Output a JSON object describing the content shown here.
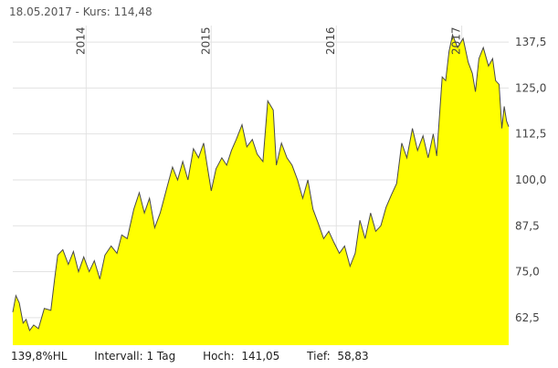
{
  "header": {
    "date": "18.05.2017",
    "kurs_label": "Kurs:",
    "kurs_value": "114,48"
  },
  "footer": {
    "hl_text": "139,8%HL",
    "intervall_label": "Intervall:",
    "intervall_value": "1 Tag",
    "hoch_label": "Hoch:",
    "hoch_value": "141,05",
    "tief_label": "Tief:",
    "tief_value": "58,83"
  },
  "colors": {
    "fill": "#ffff00",
    "line": "#4a4a4a",
    "grid": "#e2e2e2"
  },
  "chart_data": {
    "type": "area",
    "ylim": [
      55,
      142
    ],
    "xlim": [
      "2013-06-01",
      "2017-05-18"
    ],
    "y_ticks": [
      62.5,
      75.0,
      87.5,
      100.0,
      112.5,
      125.0,
      137.5
    ],
    "y_tick_labels": [
      "62,5",
      "75,0",
      "87,5",
      "100,0",
      "112,5",
      "125,0",
      "137,5"
    ],
    "x_ticks": [
      {
        "label": "2014",
        "date": "2014-01-01"
      },
      {
        "label": "2015",
        "date": "2015-01-01"
      },
      {
        "label": "2016",
        "date": "2016-01-01"
      },
      {
        "label": "2017",
        "date": "2017-01-01"
      }
    ],
    "grid": true,
    "legend": false,
    "series": [
      {
        "points": [
          [
            "2013-06-01",
            64.0
          ],
          [
            "2013-06-10",
            68.5
          ],
          [
            "2013-06-20",
            66.5
          ],
          [
            "2013-07-01",
            61.0
          ],
          [
            "2013-07-10",
            62.0
          ],
          [
            "2013-07-20",
            59.0
          ],
          [
            "2013-08-01",
            60.5
          ],
          [
            "2013-08-15",
            59.5
          ],
          [
            "2013-09-01",
            65.0
          ],
          [
            "2013-09-20",
            64.5
          ],
          [
            "2013-10-01",
            73.0
          ],
          [
            "2013-10-10",
            79.5
          ],
          [
            "2013-10-25",
            81.0
          ],
          [
            "2013-11-10",
            77.0
          ],
          [
            "2013-11-25",
            80.5
          ],
          [
            "2013-12-10",
            75.0
          ],
          [
            "2013-12-25",
            79.0
          ],
          [
            "2014-01-10",
            75.0
          ],
          [
            "2014-01-25",
            78.0
          ],
          [
            "2014-02-10",
            73.0
          ],
          [
            "2014-02-25",
            79.5
          ],
          [
            "2014-03-15",
            82.0
          ],
          [
            "2014-04-01",
            80.0
          ],
          [
            "2014-04-15",
            85.0
          ],
          [
            "2014-05-01",
            84.0
          ],
          [
            "2014-05-20",
            92.0
          ],
          [
            "2014-06-05",
            96.5
          ],
          [
            "2014-06-20",
            91.0
          ],
          [
            "2014-07-05",
            95.0
          ],
          [
            "2014-07-20",
            87.0
          ],
          [
            "2014-08-05",
            91.0
          ],
          [
            "2014-08-25",
            98.0
          ],
          [
            "2014-09-10",
            103.5
          ],
          [
            "2014-09-25",
            100.0
          ],
          [
            "2014-10-10",
            105.0
          ],
          [
            "2014-10-25",
            100.0
          ],
          [
            "2014-11-10",
            108.5
          ],
          [
            "2014-11-25",
            106.0
          ],
          [
            "2014-12-10",
            110.0
          ],
          [
            "2014-12-20",
            104.0
          ],
          [
            "2015-01-01",
            97.0
          ],
          [
            "2015-01-15",
            103.0
          ],
          [
            "2015-02-01",
            106.0
          ],
          [
            "2015-02-15",
            104.0
          ],
          [
            "2015-03-01",
            108.0
          ],
          [
            "2015-03-15",
            111.0
          ],
          [
            "2015-04-01",
            115.0
          ],
          [
            "2015-04-15",
            109.0
          ],
          [
            "2015-05-01",
            111.0
          ],
          [
            "2015-05-15",
            107.0
          ],
          [
            "2015-06-01",
            105.0
          ],
          [
            "2015-06-15",
            121.5
          ],
          [
            "2015-07-01",
            119.0
          ],
          [
            "2015-07-10",
            104.0
          ],
          [
            "2015-07-25",
            110.0
          ],
          [
            "2015-08-10",
            106.0
          ],
          [
            "2015-08-25",
            104.0
          ],
          [
            "2015-09-10",
            100.0
          ],
          [
            "2015-09-25",
            95.0
          ],
          [
            "2015-10-10",
            100.0
          ],
          [
            "2015-10-25",
            92.0
          ],
          [
            "2015-11-10",
            88.0
          ],
          [
            "2015-11-25",
            84.0
          ],
          [
            "2015-12-10",
            86.0
          ],
          [
            "2015-12-25",
            83.0
          ],
          [
            "2016-01-10",
            80.0
          ],
          [
            "2016-01-25",
            82.0
          ],
          [
            "2016-02-10",
            76.5
          ],
          [
            "2016-02-25",
            80.0
          ],
          [
            "2016-03-10",
            89.0
          ],
          [
            "2016-03-25",
            84.0
          ],
          [
            "2016-04-10",
            91.0
          ],
          [
            "2016-04-25",
            86.0
          ],
          [
            "2016-05-10",
            87.5
          ],
          [
            "2016-05-25",
            92.5
          ],
          [
            "2016-06-10",
            96.0
          ],
          [
            "2016-06-25",
            99.0
          ],
          [
            "2016-07-10",
            110.0
          ],
          [
            "2016-07-25",
            106.0
          ],
          [
            "2016-08-10",
            114.0
          ],
          [
            "2016-08-25",
            108.0
          ],
          [
            "2016-09-10",
            112.0
          ],
          [
            "2016-09-25",
            106.0
          ],
          [
            "2016-10-10",
            112.5
          ],
          [
            "2016-10-20",
            106.5
          ],
          [
            "2016-11-05",
            128.0
          ],
          [
            "2016-11-15",
            127.0
          ],
          [
            "2016-11-25",
            135.0
          ],
          [
            "2016-12-05",
            139.5
          ],
          [
            "2016-12-20",
            136.0
          ],
          [
            "2017-01-05",
            138.5
          ],
          [
            "2017-01-20",
            132.0
          ],
          [
            "2017-02-01",
            129.0
          ],
          [
            "2017-02-10",
            124.0
          ],
          [
            "2017-02-20",
            133.0
          ],
          [
            "2017-03-05",
            136.0
          ],
          [
            "2017-03-20",
            131.0
          ],
          [
            "2017-04-01",
            133.0
          ],
          [
            "2017-04-10",
            127.0
          ],
          [
            "2017-04-20",
            126.0
          ],
          [
            "2017-04-28",
            114.0
          ],
          [
            "2017-05-05",
            120.0
          ],
          [
            "2017-05-12",
            116.0
          ],
          [
            "2017-05-18",
            114.48
          ]
        ]
      }
    ]
  }
}
